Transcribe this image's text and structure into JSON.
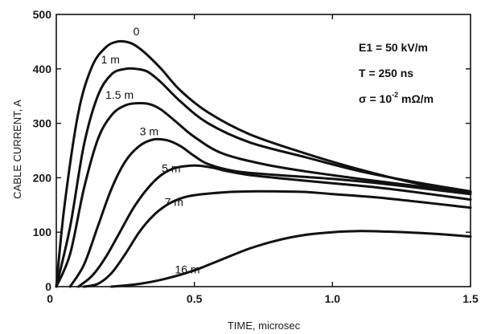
{
  "chart_data": {
    "type": "line",
    "xlabel": "TIME, microsec",
    "ylabel": "CABLE   CURRENT, A",
    "xlim": [
      0,
      1.5
    ],
    "ylim": [
      0,
      500
    ],
    "x_ticks": [
      0,
      0.5,
      1.0,
      1.5
    ],
    "x_tick_labels": [
      "0",
      "0.5",
      "1.0",
      "1.5"
    ],
    "y_ticks": [
      0,
      100,
      200,
      300,
      400,
      500
    ],
    "y_tick_labels": [
      "0",
      "100",
      "200",
      "300",
      "400",
      "500"
    ],
    "grid": false,
    "annotations": [
      {
        "prefix": "E1 = 50 kV/m",
        "sup": "",
        "suffix": ""
      },
      {
        "prefix": "T = 250 ns",
        "sup": "",
        "suffix": ""
      },
      {
        "prefix": "σ = 10",
        "sup": "-2",
        "suffix": " mΩ/m"
      }
    ],
    "series": [
      {
        "label": "0",
        "x": [
          0,
          0.03,
          0.08,
          0.13,
          0.18,
          0.22,
          0.25,
          0.28,
          0.32,
          0.38,
          0.45,
          0.55,
          0.7,
          0.9,
          1.1,
          1.3,
          1.5
        ],
        "y": [
          0,
          150,
          320,
          405,
          440,
          450,
          450,
          445,
          430,
          400,
          360,
          320,
          280,
          245,
          215,
          190,
          170
        ]
      },
      {
        "label": "1 m",
        "x": [
          0,
          0.05,
          0.1,
          0.15,
          0.2,
          0.25,
          0.29,
          0.33,
          0.38,
          0.45,
          0.55,
          0.7,
          0.9,
          1.1,
          1.3,
          1.5
        ],
        "y": [
          0,
          110,
          260,
          350,
          390,
          400,
          400,
          395,
          375,
          340,
          300,
          265,
          238,
          212,
          192,
          175
        ]
      },
      {
        "label": "1.5 m",
        "x": [
          0,
          0.05,
          0.1,
          0.15,
          0.2,
          0.25,
          0.3,
          0.34,
          0.38,
          0.44,
          0.5,
          0.6,
          0.75,
          0.9,
          1.1,
          1.3,
          1.5
        ],
        "y": [
          0,
          60,
          180,
          270,
          315,
          333,
          337,
          335,
          325,
          300,
          275,
          245,
          225,
          212,
          198,
          185,
          173
        ]
      },
      {
        "label": "3 m",
        "x": [
          0.05,
          0.1,
          0.15,
          0.2,
          0.25,
          0.3,
          0.35,
          0.4,
          0.45,
          0.5,
          0.55,
          0.65,
          0.8,
          1.0,
          1.2,
          1.5
        ],
        "y": [
          0,
          40,
          110,
          180,
          230,
          258,
          270,
          269,
          258,
          240,
          225,
          212,
          205,
          198,
          188,
          170
        ]
      },
      {
        "label": "5 m",
        "x": [
          0.08,
          0.13,
          0.18,
          0.23,
          0.28,
          0.33,
          0.38,
          0.43,
          0.48,
          0.52,
          0.57,
          0.62,
          0.7,
          0.85,
          1.0,
          1.2,
          1.5
        ],
        "y": [
          0,
          20,
          55,
          100,
          145,
          180,
          205,
          218,
          222,
          222,
          218,
          212,
          205,
          197,
          190,
          180,
          160
        ]
      },
      {
        "label": "7 m",
        "x": [
          0.1,
          0.15,
          0.2,
          0.25,
          0.3,
          0.35,
          0.4,
          0.45,
          0.5,
          0.6,
          0.7,
          0.8,
          0.9,
          1.0,
          1.2,
          1.5
        ],
        "y": [
          0,
          5,
          25,
          60,
          100,
          130,
          150,
          162,
          168,
          173,
          175,
          175,
          174,
          170,
          162,
          145
        ]
      },
      {
        "label": "16 m",
        "x": [
          0.2,
          0.3,
          0.4,
          0.5,
          0.6,
          0.7,
          0.8,
          0.9,
          1.0,
          1.1,
          1.2,
          1.3,
          1.4,
          1.5
        ],
        "y": [
          0,
          5,
          15,
          30,
          50,
          70,
          85,
          95,
          100,
          102,
          101,
          99,
          96,
          92
        ]
      }
    ]
  }
}
